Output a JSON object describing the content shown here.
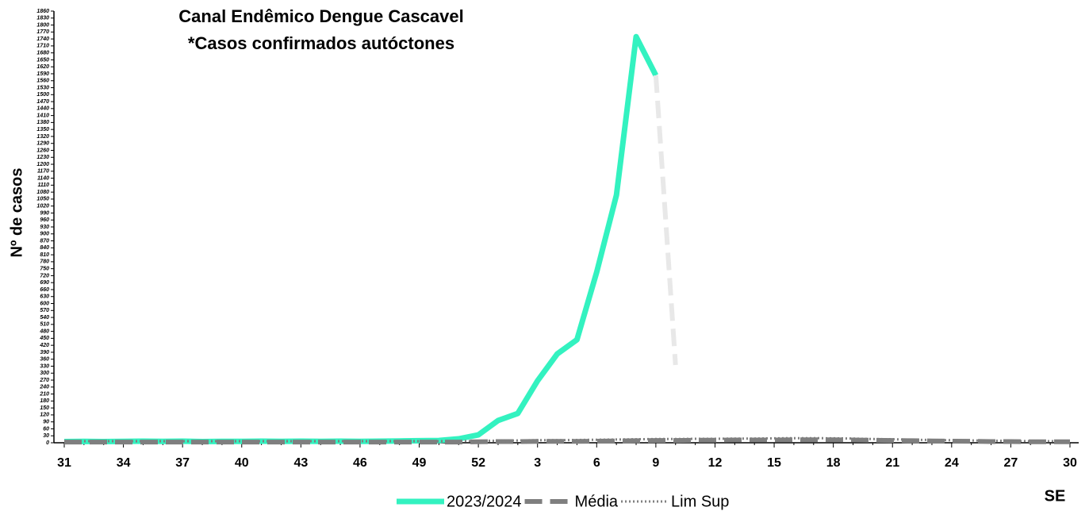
{
  "chart_data": {
    "type": "line",
    "title": [
      "Canal Endêmico Dengue Cascavel",
      "*Casos confirmados autóctones"
    ],
    "y_label": "Nº de casos",
    "x_label": "SE",
    "categories": [
      "31",
      null,
      null,
      "34",
      null,
      null,
      "37",
      null,
      null,
      "40",
      null,
      null,
      "43",
      null,
      null,
      "46",
      null,
      null,
      "49",
      null,
      null,
      "52",
      null,
      null,
      "3",
      null,
      null,
      "6",
      null,
      null,
      "9",
      null,
      null,
      "12",
      null,
      null,
      "15",
      null,
      null,
      "18",
      null,
      null,
      "21",
      null,
      null,
      "24",
      null,
      null,
      "27",
      null,
      null,
      "30"
    ],
    "ylim": [
      0,
      1860
    ],
    "yticks": [
      0,
      30,
      60,
      90,
      120,
      150,
      180,
      210,
      240,
      270,
      300,
      330,
      360,
      390,
      420,
      450,
      480,
      510,
      540,
      570,
      600,
      630,
      660,
      690,
      720,
      750,
      780,
      810,
      840,
      870,
      900,
      930,
      960,
      990,
      1020,
      1050,
      1080,
      1110,
      1140,
      1170,
      1200,
      1230,
      1260,
      1290,
      1320,
      1350,
      1380,
      1410,
      1440,
      1470,
      1500,
      1530,
      1560,
      1590,
      1620,
      1650,
      1680,
      1710,
      1740,
      1770,
      1800,
      1830,
      1860
    ],
    "series": [
      {
        "name": "2023/2024",
        "color": "#33f2c0",
        "style": "solid",
        "values": [
          5,
          6,
          5,
          6,
          7,
          6,
          7,
          5,
          6,
          6,
          7,
          6,
          7,
          6,
          7,
          6,
          7,
          8,
          9,
          10,
          17,
          34,
          96,
          126,
          267,
          383,
          444,
          735,
          1067,
          1750,
          1583,
          null,
          null,
          null,
          null,
          null,
          null,
          null,
          null,
          null,
          null,
          null,
          null,
          null,
          null,
          null,
          null,
          null,
          null,
          null,
          null,
          null
        ]
      },
      {
        "color": "#e8e8e8",
        "style": "dashed",
        "values": [
          null,
          null,
          null,
          null,
          null,
          null,
          null,
          null,
          null,
          null,
          null,
          null,
          null,
          null,
          null,
          null,
          null,
          null,
          null,
          null,
          null,
          null,
          null,
          null,
          null,
          null,
          null,
          null,
          null,
          null,
          1583,
          335,
          null,
          null,
          null,
          null,
          null,
          null,
          null,
          null,
          null,
          null,
          null,
          null,
          null,
          null,
          null,
          null,
          null,
          null,
          null,
          null
        ]
      },
      {
        "name": "Média",
        "color": "#7f7f7f",
        "style": "dashed",
        "values": [
          3,
          3,
          3,
          3,
          3,
          3,
          3,
          3,
          3,
          3,
          3,
          3,
          3,
          3,
          3,
          3,
          3,
          3,
          3,
          3,
          3,
          4,
          5,
          5,
          6,
          6,
          6,
          7,
          8,
          9,
          10,
          10,
          11,
          11,
          12,
          12,
          12,
          13,
          13,
          13,
          12,
          11,
          10,
          9,
          8,
          7,
          6,
          5,
          5,
          4,
          4,
          4
        ]
      },
      {
        "name": "Lim Sup",
        "color": "#7f7f7f",
        "style": "dotted",
        "values": [
          7,
          7,
          7,
          7,
          7,
          7,
          7,
          7,
          7,
          7,
          7,
          7,
          7,
          7,
          7,
          7,
          7,
          7,
          7,
          7,
          7,
          8,
          9,
          10,
          11,
          11,
          12,
          13,
          14,
          15,
          16,
          16,
          17,
          17,
          18,
          18,
          19,
          20,
          20,
          19,
          18,
          16,
          15,
          13,
          12,
          11,
          10,
          9,
          8,
          7,
          7,
          6
        ]
      }
    ]
  }
}
